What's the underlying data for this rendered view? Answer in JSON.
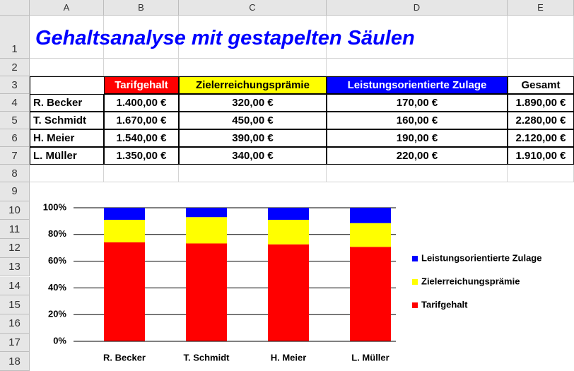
{
  "sheet": {
    "columns": [
      "A",
      "B",
      "C",
      "D",
      "E"
    ],
    "rows": [
      "1",
      "2",
      "3",
      "4",
      "5",
      "6",
      "7",
      "8",
      "9",
      "10",
      "11",
      "12",
      "13",
      "14",
      "15",
      "16",
      "17",
      "18"
    ]
  },
  "title": "Gehaltsanalyse mit gestapelten Säulen",
  "table": {
    "header": [
      "Tarifgehalt",
      "Zielerreichungsprämie",
      "Leistungsorientierte Zulage",
      "Gesamt"
    ],
    "rows": [
      [
        "R. Becker",
        "1.400,00 €",
        "320,00 €",
        "170,00 €",
        "1.890,00 €"
      ],
      [
        "T. Schmidt",
        "1.670,00 €",
        "450,00 €",
        "160,00 €",
        "2.280,00 €"
      ],
      [
        "H. Meier",
        "1.540,00 €",
        "390,00 €",
        "190,00 €",
        "2.120,00 €"
      ],
      [
        "L. Müller",
        "1.350,00 €",
        "340,00 €",
        "220,00 €",
        "1.910,00 €"
      ]
    ]
  },
  "chart_data": {
    "type": "stacked_bar_100",
    "categories": [
      "R. Becker",
      "T. Schmidt",
      "H. Meier",
      "L. Müller"
    ],
    "series": [
      {
        "name": "Tarifgehalt",
        "color": "#ff0000",
        "values": [
          74.1,
          73.3,
          72.6,
          70.7
        ]
      },
      {
        "name": "Zielerreichungsprämie",
        "color": "#ffff00",
        "values": [
          16.9,
          19.7,
          18.4,
          17.8
        ]
      },
      {
        "name": "Leistungsorientierte Zulage",
        "color": "#0000ff",
        "values": [
          9.0,
          7.0,
          9.0,
          11.5
        ]
      }
    ],
    "ylim": [
      0,
      100
    ],
    "yticks": [
      {
        "value": 0,
        "label": "0%"
      },
      {
        "value": 20,
        "label": "20%"
      },
      {
        "value": 40,
        "label": "40%"
      },
      {
        "value": 60,
        "label": "60%"
      },
      {
        "value": 80,
        "label": "80%"
      },
      {
        "value": 100,
        "label": "100%"
      }
    ],
    "grid": true,
    "legend": "right"
  }
}
